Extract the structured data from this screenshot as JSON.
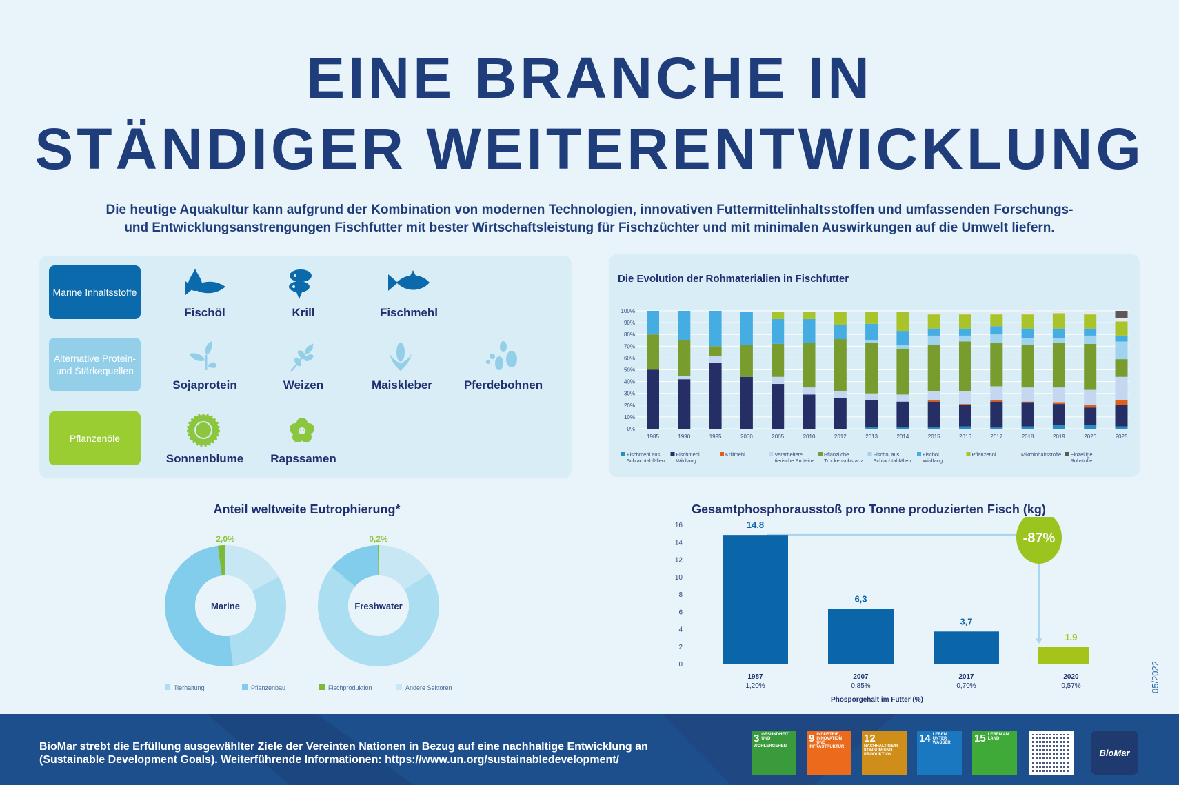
{
  "title": {
    "line1": "EINE BRANCHE IN",
    "line2": "STÄNDIGER WEITERENTWICKLUNG"
  },
  "intro": {
    "line1": "Die heutige Aquakultur kann aufgrund der Kombination von modernen Technologien, innovativen Futtermittelinhaltsstoffen und umfassenden Forschungs-",
    "line2": "und Entwicklungsanstrengungen Fischfutter mit bester Wirtschaftsleistung für Fischzüchter und mit minimalen Auswirkungen auf die Umwelt liefern."
  },
  "ingredients": {
    "categories": [
      {
        "label": "Marine Inhaltsstoffe",
        "color": "#0a6aab",
        "items": [
          {
            "label": "Fischöl",
            "icon": "fish-oil-drop-icon"
          },
          {
            "label": "Krill",
            "icon": "krill-icon"
          },
          {
            "label": "Fischmehl",
            "icon": "fish-icon"
          }
        ]
      },
      {
        "label": "Alternative Protein- und Stärkequellen",
        "color": "#94cfe9",
        "items": [
          {
            "label": "Sojaprotein",
            "icon": "soy-plant-icon"
          },
          {
            "label": "Weizen",
            "icon": "wheat-icon"
          },
          {
            "label": "Maiskleber",
            "icon": "corn-icon"
          },
          {
            "label": "Pferdebohnen",
            "icon": "beans-icon"
          }
        ]
      },
      {
        "label": "Pflanzenöle",
        "color": "#9acd32",
        "items": [
          {
            "label": "Sonnenblume",
            "icon": "sunflower-icon"
          },
          {
            "label": "Rapssamen",
            "icon": "rapeseed-flower-icon"
          }
        ]
      }
    ]
  },
  "chart_data": [
    {
      "type": "bar",
      "stacked": true,
      "title": "Die Evolution der Rohmaterialien in Fischfutter",
      "categories": [
        "1985",
        "1990",
        "1995",
        "2000",
        "2005",
        "2010",
        "2012",
        "2013",
        "2014",
        "2015",
        "2016",
        "2017",
        "2018",
        "2019",
        "2020",
        "2025"
      ],
      "yticks": [
        "0%",
        "10%",
        "20%",
        "30%",
        "40%",
        "50%",
        "60%",
        "70%",
        "80%",
        "90%",
        "100%"
      ],
      "ylim": [
        0,
        100
      ],
      "grid": true,
      "legend": "bottom",
      "series": [
        {
          "name": "Fischmehl aus Schlachtabfällen",
          "color": "#2a8cc4",
          "values": [
            0,
            0,
            0,
            0,
            0,
            0,
            0,
            1,
            1,
            1,
            2,
            1,
            2,
            3,
            3,
            2
          ]
        },
        {
          "name": "Fischmehl Wildfang",
          "color": "#252f65",
          "values": [
            50,
            42,
            56,
            44,
            38,
            29,
            26,
            23,
            22,
            22,
            18,
            22,
            20,
            18,
            15,
            18
          ]
        },
        {
          "name": "Krillmehl",
          "color": "#e0601a",
          "values": [
            0,
            0,
            0,
            0,
            0,
            0,
            0,
            0,
            0,
            1,
            1,
            1,
            1,
            1,
            2,
            4
          ]
        },
        {
          "name": "Verarbeitete tierische Proteine",
          "color": "#c3d8f0",
          "values": [
            0,
            3,
            6,
            0,
            6,
            6,
            6,
            6,
            6,
            8,
            11,
            12,
            12,
            13,
            13,
            20
          ]
        },
        {
          "name": "Pflanzliche Trockensubstanz",
          "color": "#789c2e",
          "values": [
            30,
            30,
            8,
            27,
            28,
            38,
            44,
            43,
            39,
            39,
            42,
            37,
            36,
            38,
            39,
            15
          ]
        },
        {
          "name": "Fischöl aus Schlachtabfällen",
          "color": "#9fd3f0",
          "values": [
            0,
            0,
            0,
            0,
            0,
            0,
            0,
            2,
            3,
            8,
            5,
            7,
            6,
            4,
            7,
            15
          ]
        },
        {
          "name": "Fischöl Wildfang",
          "color": "#45ade2",
          "values": [
            20,
            25,
            30,
            28,
            21,
            20,
            12,
            14,
            12,
            6,
            6,
            7,
            8,
            8,
            6,
            5
          ]
        },
        {
          "name": "Pflanzenöl",
          "color": "#a8c42a",
          "values": [
            0,
            0,
            0,
            0,
            6,
            6,
            11,
            10,
            16,
            12,
            12,
            10,
            12,
            13,
            12,
            12
          ]
        },
        {
          "name": "Mikroinhaltsstoffe",
          "color": "#e8e8ee",
          "values": [
            0,
            0,
            0,
            0,
            0,
            0,
            0,
            0,
            0,
            2,
            2,
            2,
            3,
            2,
            3,
            3
          ]
        },
        {
          "name": "Einzellige Rohstoffe",
          "color": "#5e5758",
          "values": [
            0,
            0,
            0,
            0,
            0,
            0,
            0,
            0,
            0,
            0,
            0,
            0,
            0,
            0,
            0,
            6
          ]
        }
      ]
    },
    {
      "type": "pie",
      "donut": true,
      "title": "Anteil weltweite Eutrophierung*",
      "legend": "bottom",
      "legend_entries": [
        {
          "name": "Tierhaltung",
          "color": "#acdef1"
        },
        {
          "name": "Pflanzenbau",
          "color": "#82cdeb"
        },
        {
          "name": "Fischproduktion",
          "color": "#7fb93a"
        },
        {
          "name": "Andere Sektoren",
          "color": "#c8e7f4"
        }
      ],
      "charts": [
        {
          "label": "Marine",
          "highlight_label": "2,0%",
          "slices": [
            {
              "name": "Andere Sektoren",
              "value": 17
            },
            {
              "name": "Tierhaltung",
              "value": 31
            },
            {
              "name": "Pflanzenbau",
              "value": 50
            },
            {
              "name": "Fischproduktion",
              "value": 2.0
            }
          ]
        },
        {
          "label": "Freshwater",
          "highlight_label": "0,2%",
          "slices": [
            {
              "name": "Andere Sektoren",
              "value": 16
            },
            {
              "name": "Tierhaltung",
              "value": 70
            },
            {
              "name": "Pflanzenbau",
              "value": 13.8
            },
            {
              "name": "Fischproduktion",
              "value": 0.2
            }
          ]
        }
      ]
    },
    {
      "type": "bar",
      "title": "Gesamtphosphorausstoß pro Tonne produzierten Fisch (kg)",
      "categories": [
        "1987",
        "2007",
        "2017",
        "2020"
      ],
      "sublabels": [
        "1,20%",
        "0,85%",
        "0,70%",
        "0,57%"
      ],
      "values": [
        14.8,
        6.3,
        3.7,
        1.9
      ],
      "value_labels": [
        "14,8",
        "6,3",
        "3,7",
        "1.9"
      ],
      "colors": [
        "#0a65a9",
        "#0a65a9",
        "#0a65a9",
        "#a5c41a"
      ],
      "yticks": [
        "0",
        "2",
        "4",
        "6",
        "8",
        "10",
        "12",
        "14",
        "16"
      ],
      "ylim": [
        0,
        16
      ],
      "xlabel": "Phosporgehalt im Futter (%)",
      "annotation": "-87%"
    }
  ],
  "date_stamp": "05/2022",
  "footer": {
    "text_line1": "BioMar strebt die Erfüllung ausgewählter Ziele der Vereinten Nationen in Bezug auf eine nachhaltige Entwicklung an",
    "text_line2": "(Sustainable Development Goals). Weiterführende Informationen: https://www.un.org/sustainabledevelopment/",
    "sdgs": [
      {
        "num": "3",
        "label": "GESUNDHEIT UND WOHLERGEHEN",
        "color": "#3a9b3c"
      },
      {
        "num": "9",
        "label": "INDUSTRIE, INNOVATION UND INFRASTRUKTUR",
        "color": "#ec6a1c"
      },
      {
        "num": "12",
        "label": "NACHHALTIGE/R KONSUM UND PRODUKTION",
        "color": "#cf8d1a"
      },
      {
        "num": "14",
        "label": "LEBEN UNTER WASSER",
        "color": "#1a78c0"
      },
      {
        "num": "15",
        "label": "LEBEN AN LAND",
        "color": "#3faa37"
      }
    ],
    "logo": "BioMar"
  }
}
